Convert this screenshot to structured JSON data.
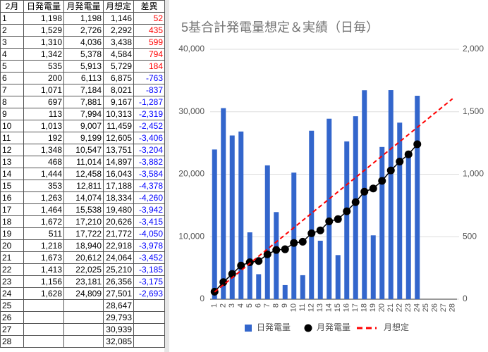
{
  "table": {
    "header": [
      "2月",
      "日発電量",
      "月発電量",
      "月想定",
      "差異"
    ],
    "positive_color": "#ff0000",
    "negative_color": "#0000ff",
    "rows": [
      [
        "1",
        "1,198",
        "1,198",
        "1,146",
        "52"
      ],
      [
        "2",
        "1,529",
        "2,726",
        "2,292",
        "435"
      ],
      [
        "3",
        "1,310",
        "4,036",
        "3,438",
        "599"
      ],
      [
        "4",
        "1,342",
        "5,378",
        "4,584",
        "794"
      ],
      [
        "5",
        "535",
        "5,913",
        "5,729",
        "184"
      ],
      [
        "6",
        "200",
        "6,113",
        "6,875",
        "-763"
      ],
      [
        "7",
        "1,071",
        "7,184",
        "8,021",
        "-837"
      ],
      [
        "8",
        "697",
        "7,881",
        "9,167",
        "-1,287"
      ],
      [
        "9",
        "113",
        "7,994",
        "10,313",
        "-2,319"
      ],
      [
        "10",
        "1,013",
        "9,007",
        "11,459",
        "-2,452"
      ],
      [
        "11",
        "192",
        "9,199",
        "12,605",
        "-3,406"
      ],
      [
        "12",
        "1,348",
        "10,547",
        "13,751",
        "-3,204"
      ],
      [
        "13",
        "468",
        "11,014",
        "14,897",
        "-3,882"
      ],
      [
        "14",
        "1,444",
        "12,458",
        "16,043",
        "-3,584"
      ],
      [
        "15",
        "353",
        "12,811",
        "17,188",
        "-4,378"
      ],
      [
        "16",
        "1,263",
        "14,074",
        "18,334",
        "-4,260"
      ],
      [
        "17",
        "1,464",
        "15,538",
        "19,480",
        "-3,942"
      ],
      [
        "18",
        "1,672",
        "17,210",
        "20,626",
        "-3,415"
      ],
      [
        "19",
        "511",
        "17,722",
        "21,772",
        "-4,050"
      ],
      [
        "20",
        "1,218",
        "18,940",
        "22,918",
        "-3,978"
      ],
      [
        "21",
        "1,673",
        "20,612",
        "24,064",
        "-3,452"
      ],
      [
        "22",
        "1,413",
        "22,025",
        "25,210",
        "-3,185"
      ],
      [
        "23",
        "1,156",
        "23,181",
        "26,356",
        "-3,175"
      ],
      [
        "24",
        "1,628",
        "24,809",
        "27,501",
        "-2,693"
      ],
      [
        "25",
        null,
        null,
        "28,647",
        null
      ],
      [
        "26",
        null,
        null,
        "29,793",
        null
      ],
      [
        "27",
        null,
        null,
        "30,939",
        null
      ],
      [
        "28",
        null,
        null,
        "32,085",
        null
      ]
    ]
  },
  "chart_data": {
    "type": "combo",
    "title": "5基合計発電量想定＆実績（日毎）",
    "categories": [
      "1",
      "2",
      "3",
      "4",
      "5",
      "6",
      "7",
      "8",
      "9",
      "10",
      "11",
      "12",
      "13",
      "14",
      "15",
      "16",
      "17",
      "18",
      "19",
      "20",
      "21",
      "22",
      "23",
      "24",
      "25",
      "26",
      "27",
      "28"
    ],
    "ylim": [
      0,
      40000
    ],
    "yticks": [
      0,
      {
        "value": 10000,
        "label": "10,000"
      },
      {
        "value": 20000,
        "label": "20,000"
      },
      {
        "value": 30000,
        "label": "30,000"
      },
      {
        "value": 40000,
        "label": "40,000"
      }
    ],
    "y2lim": [
      0,
      2000
    ],
    "y2ticks": [
      0,
      500,
      {
        "value": 1000,
        "label": "1,000"
      },
      {
        "value": 1500,
        "label": "1,500"
      },
      {
        "value": 2000,
        "label": "2,000"
      }
    ],
    "grid": true,
    "legend": "bottom",
    "series": [
      {
        "name": "日発電量",
        "type": "bar",
        "axis": "y2",
        "color": "#3366cc",
        "values": [
          1198,
          1529,
          1310,
          1342,
          535,
          200,
          1071,
          697,
          113,
          1013,
          192,
          1348,
          468,
          1444,
          353,
          1263,
          1464,
          1672,
          511,
          1218,
          1673,
          1413,
          1156,
          1628,
          null,
          null,
          null,
          null
        ]
      },
      {
        "name": "月発電量",
        "type": "line",
        "marker": true,
        "dashed": false,
        "color": "#000000",
        "values": [
          1198,
          2726,
          4036,
          5378,
          5913,
          6113,
          7184,
          7881,
          7994,
          9007,
          9199,
          10547,
          11014,
          12458,
          12811,
          14074,
          15538,
          17210,
          17722,
          18940,
          20612,
          22025,
          23181,
          24809,
          null,
          null,
          null,
          null
        ]
      },
      {
        "name": "月想定",
        "type": "line",
        "marker": false,
        "dashed": true,
        "color": "#ff0000",
        "values": [
          1146,
          2292,
          3438,
          4584,
          5729,
          6875,
          8021,
          9167,
          10313,
          11459,
          12605,
          13751,
          14897,
          16043,
          17188,
          18334,
          19480,
          20626,
          21772,
          22918,
          24064,
          25210,
          26356,
          27501,
          28647,
          29793,
          30939,
          32085
        ]
      }
    ]
  }
}
